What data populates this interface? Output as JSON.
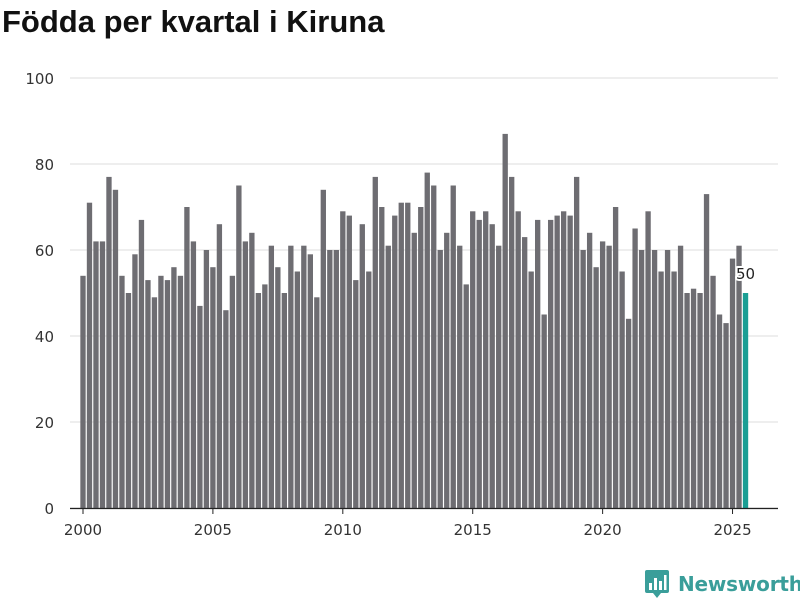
{
  "chart_data": {
    "type": "bar",
    "title": "Födda per kvartal i Kiruna",
    "xlabel": "",
    "ylabel": "",
    "ylim": [
      0,
      100
    ],
    "yticks": [
      0,
      20,
      40,
      60,
      80,
      100
    ],
    "xlim": [
      1999.5,
      2026.75
    ],
    "xticks": [
      2000,
      2005,
      2010,
      2015,
      2020,
      2025
    ],
    "grid": true,
    "bar_color": "#6e6d72",
    "highlight_color": "#1a9e94",
    "highlight_label": "50",
    "x": [
      "2000Q1",
      "2000Q2",
      "2000Q3",
      "2000Q4",
      "2001Q1",
      "2001Q2",
      "2001Q3",
      "2001Q4",
      "2002Q1",
      "2002Q2",
      "2002Q3",
      "2002Q4",
      "2003Q1",
      "2003Q2",
      "2003Q3",
      "2003Q4",
      "2004Q1",
      "2004Q2",
      "2004Q3",
      "2004Q4",
      "2005Q1",
      "2005Q2",
      "2005Q3",
      "2005Q4",
      "2006Q1",
      "2006Q2",
      "2006Q3",
      "2006Q4",
      "2007Q1",
      "2007Q2",
      "2007Q3",
      "2007Q4",
      "2008Q1",
      "2008Q2",
      "2008Q3",
      "2008Q4",
      "2009Q1",
      "2009Q2",
      "2009Q3",
      "2009Q4",
      "2010Q1",
      "2010Q2",
      "2010Q3",
      "2010Q4",
      "2011Q1",
      "2011Q2",
      "2011Q3",
      "2011Q4",
      "2012Q1",
      "2012Q2",
      "2012Q3",
      "2012Q4",
      "2013Q1",
      "2013Q2",
      "2013Q3",
      "2013Q4",
      "2014Q1",
      "2014Q2",
      "2014Q3",
      "2014Q4",
      "2015Q1",
      "2015Q2",
      "2015Q3",
      "2015Q4",
      "2016Q1",
      "2016Q2",
      "2016Q3",
      "2016Q4",
      "2017Q1",
      "2017Q2",
      "2017Q3",
      "2017Q4",
      "2018Q1",
      "2018Q2",
      "2018Q3",
      "2018Q4",
      "2019Q1",
      "2019Q2",
      "2019Q3",
      "2019Q4",
      "2020Q1",
      "2020Q2",
      "2020Q3",
      "2020Q4",
      "2021Q1",
      "2021Q2",
      "2021Q3",
      "2021Q4",
      "2022Q1",
      "2022Q2",
      "2022Q3",
      "2022Q4",
      "2023Q1",
      "2023Q2",
      "2023Q3",
      "2023Q4",
      "2024Q1",
      "2024Q2",
      "2024Q3",
      "2024Q4",
      "2025Q1",
      "2025Q2",
      "2025Q3"
    ],
    "values": [
      54,
      71,
      62,
      62,
      77,
      74,
      54,
      50,
      59,
      67,
      53,
      49,
      54,
      53,
      56,
      54,
      70,
      62,
      47,
      60,
      56,
      66,
      46,
      54,
      75,
      62,
      64,
      50,
      52,
      61,
      56,
      50,
      61,
      55,
      61,
      59,
      49,
      74,
      60,
      60,
      69,
      68,
      53,
      66,
      55,
      77,
      70,
      61,
      68,
      71,
      71,
      64,
      70,
      78,
      75,
      60,
      64,
      75,
      61,
      52,
      69,
      67,
      69,
      66,
      61,
      87,
      77,
      69,
      63,
      55,
      67,
      45,
      67,
      68,
      69,
      68,
      77,
      60,
      64,
      56,
      62,
      61,
      70,
      55,
      44,
      65,
      60,
      69,
      60,
      55,
      60,
      55,
      61,
      50,
      51,
      50,
      73,
      54,
      45,
      43,
      58,
      61,
      50
    ]
  },
  "brand": {
    "name": "Newsworthy",
    "logo_icon": "bar-chart-pin-icon",
    "color": "#3a9e9a"
  }
}
